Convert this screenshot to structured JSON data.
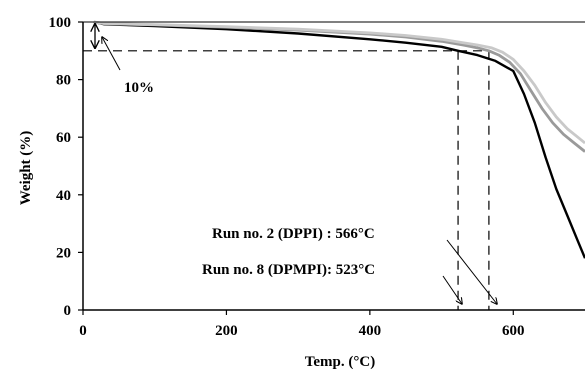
{
  "chart_data": {
    "type": "line",
    "title": "",
    "xlabel": "Temp. (°C)",
    "ylabel": "Weight (%)",
    "xlim": [
      0,
      700
    ],
    "ylim": [
      0,
      100
    ],
    "xticks": [
      0,
      200,
      400,
      600
    ],
    "yticks": [
      0,
      20,
      40,
      60,
      80,
      100
    ],
    "grid": false,
    "legend": "none",
    "series": [
      {
        "color": "#000000",
        "x": [
          15,
          30,
          100,
          200,
          300,
          400,
          450,
          500,
          523,
          550,
          575,
          600,
          615,
          630,
          645,
          660,
          675,
          690,
          700
        ],
        "y": [
          100,
          99.2,
          98.6,
          97.5,
          96,
          94,
          92.8,
          91.4,
          90,
          88.5,
          86.5,
          83,
          75,
          65,
          53,
          42,
          33,
          24,
          18
        ]
      },
      {
        "color": "#9a9a9a",
        "x": [
          15,
          30,
          100,
          200,
          300,
          400,
          450,
          500,
          530,
          550,
          566,
          580,
          595,
          610,
          625,
          640,
          655,
          670,
          685,
          700
        ],
        "y": [
          100,
          99.4,
          99,
          98.2,
          97.2,
          95.8,
          94.8,
          93.3,
          92,
          91,
          90,
          88.5,
          86,
          82,
          76,
          70,
          65,
          61,
          58,
          55
        ]
      },
      {
        "color": "#c9c9c9",
        "x": [
          15,
          30,
          100,
          200,
          300,
          400,
          450,
          500,
          530,
          550,
          570,
          585,
          600,
          615,
          630,
          645,
          660,
          675,
          690,
          700
        ],
        "y": [
          100,
          99.5,
          99.1,
          98.4,
          97.5,
          96.2,
          95.3,
          94,
          92.8,
          92,
          91,
          89.5,
          87,
          83,
          78,
          72,
          67,
          63,
          60,
          58
        ]
      }
    ],
    "reference_line_y": 90,
    "reference_lines_x": [
      523,
      566
    ],
    "annotations": [
      {
        "text": "10%"
      },
      {
        "text": "Run no. 2 (DPPI) : 566°C"
      },
      {
        "text": "Run no. 8 (DPMPI): 523°C"
      }
    ]
  }
}
